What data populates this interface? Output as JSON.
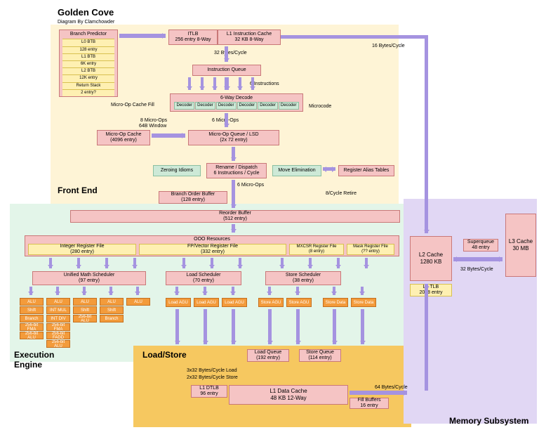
{
  "title": "Golden Cove",
  "credit": "Diagram By Clamchowder",
  "sections": {
    "fe": "Front End",
    "ee": "Execution\nEngine",
    "ls": "Load/Store",
    "mem": "Memory Subsystem"
  },
  "colors": {
    "frontend": "#fef4d6",
    "exec": "#e3f5e9",
    "loadstore": "#f6c860",
    "memory": "#e1d7f4",
    "pink": "#f5c4c4",
    "pinkBorder": "#c97878",
    "green": "#cde9d7",
    "greenBorder": "#8bbfa0",
    "orange": "#f39b3b",
    "orangeBorder": "#c56f1e",
    "yellow": "#fef0b2",
    "yellowBorder": "#d8c050",
    "arrow": "#a593e0"
  },
  "fe": {
    "bp": {
      "title": "Branch Predictor",
      "rows": [
        "L0 BTB",
        "128 entry",
        "L1 BTB",
        "6K entry",
        "L2 BTB",
        "12K entry",
        "Return Stack",
        "2 entry?"
      ]
    },
    "itlb": [
      "ITLB",
      "256 entry 8-Way"
    ],
    "l1i": [
      "L1 Instruction Cache",
      "32 KB 8-Way"
    ],
    "iq": "Instruction Queue",
    "dec6": "6-Way Decode",
    "decoder": "Decoder",
    "microcode": "Microcode",
    "uopc": [
      "Micro-Op Cache",
      "(4096 entry)"
    ],
    "uopq": [
      "Micro-Op Queue / LSD",
      "(2x 72 entry)"
    ],
    "zi": "Zeroing Idioms",
    "rd": [
      "Rename / Dispatch",
      "6 Instructions / Cycle"
    ],
    "me": "Move Elimination",
    "rat": "Register Alias Tables",
    "txt": {
      "b32": "32 Bytes/Cycle",
      "i6": "6 Instructions",
      "mocf": "Micro-Op Cache Fill",
      "u8": "8 Micro-Ops",
      "w64": "64B Window",
      "u6a": "6 Micro-Ops",
      "u6b": "6 Micro-Ops",
      "b16": "16 Bytes/Cycle",
      "ret8": "8/Cycle Retire"
    }
  },
  "ee": {
    "bob": [
      "Branch Order Buffer",
      "(128 entry)"
    ],
    "rob": [
      "Reorder Buffer",
      "(512 entry)"
    ],
    "ooo": "OOO Resources",
    "irf": [
      "Integer Register File",
      "(280 entry)"
    ],
    "fprf": [
      "FP/Vector Register File",
      "(332 entry)"
    ],
    "mxcsr": [
      "MXCSR Register File",
      "(8 entry)"
    ],
    "mrf": [
      "Mask Register File",
      "(?? entry)"
    ],
    "ums": [
      "Unified Math Scheduler",
      "(97 entry)"
    ],
    "lsch": [
      "Load Scheduler",
      "(70 entry)"
    ],
    "ssch": [
      "Store Scheduler",
      "(38 entry)"
    ],
    "eus": [
      [
        "ALU",
        "Shift",
        "Branch",
        "256-bit FMA",
        "256-bit ALU"
      ],
      [
        "ALU",
        "INT MUL",
        "INT DIV",
        "256-bit FMA",
        "256-bit FADD",
        "256-bit ALU"
      ],
      [
        "ALU",
        "Shift",
        "256-bit ALU"
      ],
      [
        "ALU",
        "Shift",
        "Branch"
      ],
      [
        "ALU"
      ]
    ],
    "lagu": "Load AGU",
    "sagu": "Store AGU",
    "sdata": "Store Data"
  },
  "ls": {
    "lq": [
      "Load Queue",
      "(192 entry)"
    ],
    "sq": [
      "Store Queue",
      "(114 entry)"
    ],
    "l1dtlb": [
      "L1 DTLB",
      "96 entry"
    ],
    "l1d": [
      "L1 Data Cache",
      "48 KB 12-Way"
    ],
    "fb": [
      "Fill Buffers",
      "16 entry"
    ],
    "txt": {
      "b332": "3x32 Bytes/Cycle Load",
      "b232": "2x32 Bytes/Cycle Store",
      "b64": "64 Bytes/Cycle"
    }
  },
  "mem": {
    "l2": [
      "L2 Cache",
      "1280 KB"
    ],
    "l2tlb": [
      "L2 TLB",
      "2048 entry"
    ],
    "sq": [
      "Superqueue",
      "48 entry"
    ],
    "l3": [
      "L3 Cache",
      "30 MB"
    ],
    "txt": {
      "b32": "32 Bytes/Cycle"
    }
  }
}
